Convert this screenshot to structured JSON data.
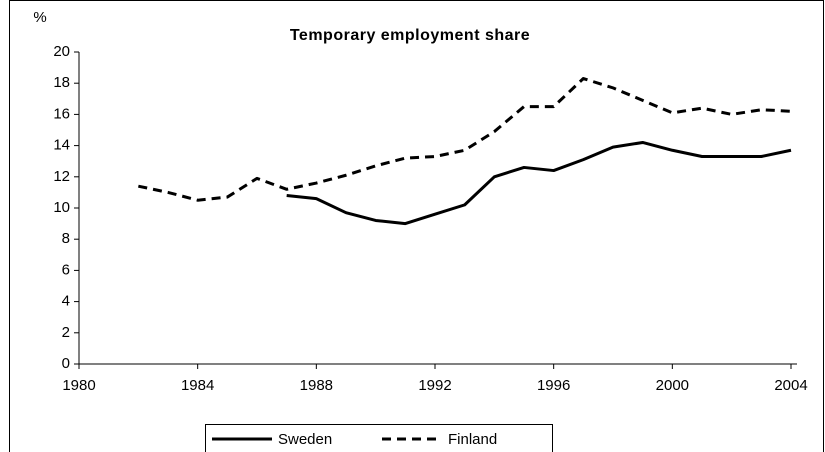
{
  "chart_data": {
    "type": "line",
    "title": "Temporary employment share",
    "y_label": "%",
    "x": [
      1982,
      1983,
      1984,
      1985,
      1986,
      1987,
      1988,
      1989,
      1990,
      1991,
      1992,
      1993,
      1994,
      1995,
      1996,
      1997,
      1998,
      1999,
      2000,
      2001,
      2002,
      2003,
      2004
    ],
    "series": [
      {
        "name": "Sweden",
        "color": "#000000",
        "dash": false,
        "values": [
          null,
          null,
          null,
          null,
          null,
          10.8,
          10.6,
          9.7,
          9.2,
          9.0,
          9.6,
          10.2,
          12.0,
          12.6,
          12.4,
          13.1,
          13.9,
          14.2,
          13.7,
          13.3,
          13.3,
          13.3,
          13.7
        ]
      },
      {
        "name": "Finland",
        "color": "#000000",
        "dash": true,
        "values": [
          11.4,
          11.0,
          10.5,
          10.7,
          11.9,
          11.2,
          11.6,
          12.1,
          12.7,
          13.2,
          13.3,
          13.7,
          14.9,
          16.5,
          16.5,
          18.3,
          17.7,
          16.9,
          16.1,
          16.4,
          16.0,
          16.3,
          16.2
        ]
      }
    ],
    "xlim": [
      1980,
      2004
    ],
    "xticks": [
      1980,
      1984,
      1988,
      1992,
      1996,
      2000,
      2004
    ],
    "ylim": [
      0,
      20
    ],
    "yticks": [
      0,
      2,
      4,
      6,
      8,
      10,
      12,
      14,
      16,
      18,
      20
    ],
    "legend": "bottom"
  }
}
